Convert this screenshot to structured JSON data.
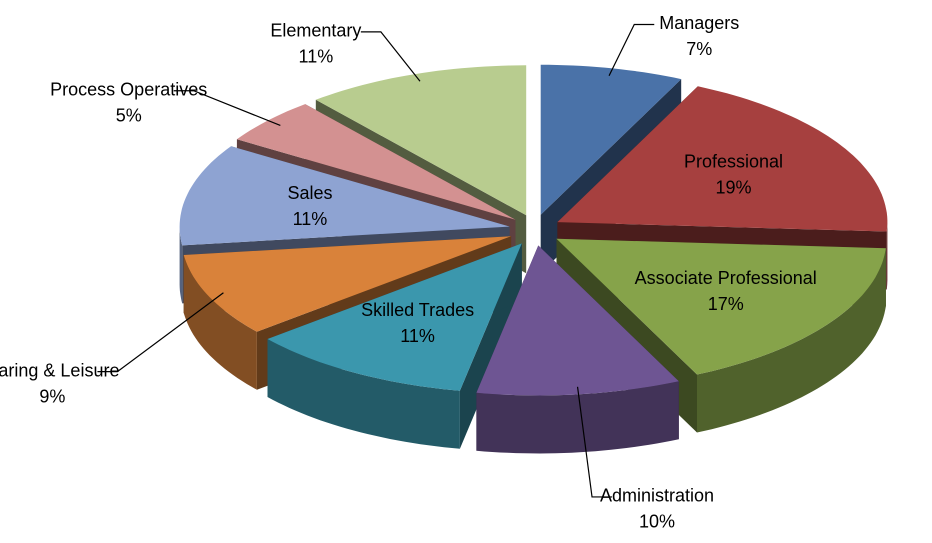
{
  "chart_data": {
    "type": "pie3d",
    "categories": [
      "Managers",
      "Professional",
      "Associate Professional",
      "Administration",
      "Skilled Trades",
      "Caring & Leisure",
      "Sales",
      "Process Operatives",
      "Elementary"
    ],
    "values": [
      7,
      19,
      17,
      10,
      11,
      9,
      11,
      5,
      11
    ],
    "value_labels": [
      "7%",
      "19%",
      "17%",
      "10%",
      "11%",
      "9%",
      "11%",
      "5%",
      "11%"
    ],
    "colors": [
      "#4a72a8",
      "#a6403f",
      "#86a34a",
      "#6e5593",
      "#3b97ad",
      "#d9823a",
      "#8ea3d2",
      "#d39191",
      "#b8cc8f"
    ]
  }
}
